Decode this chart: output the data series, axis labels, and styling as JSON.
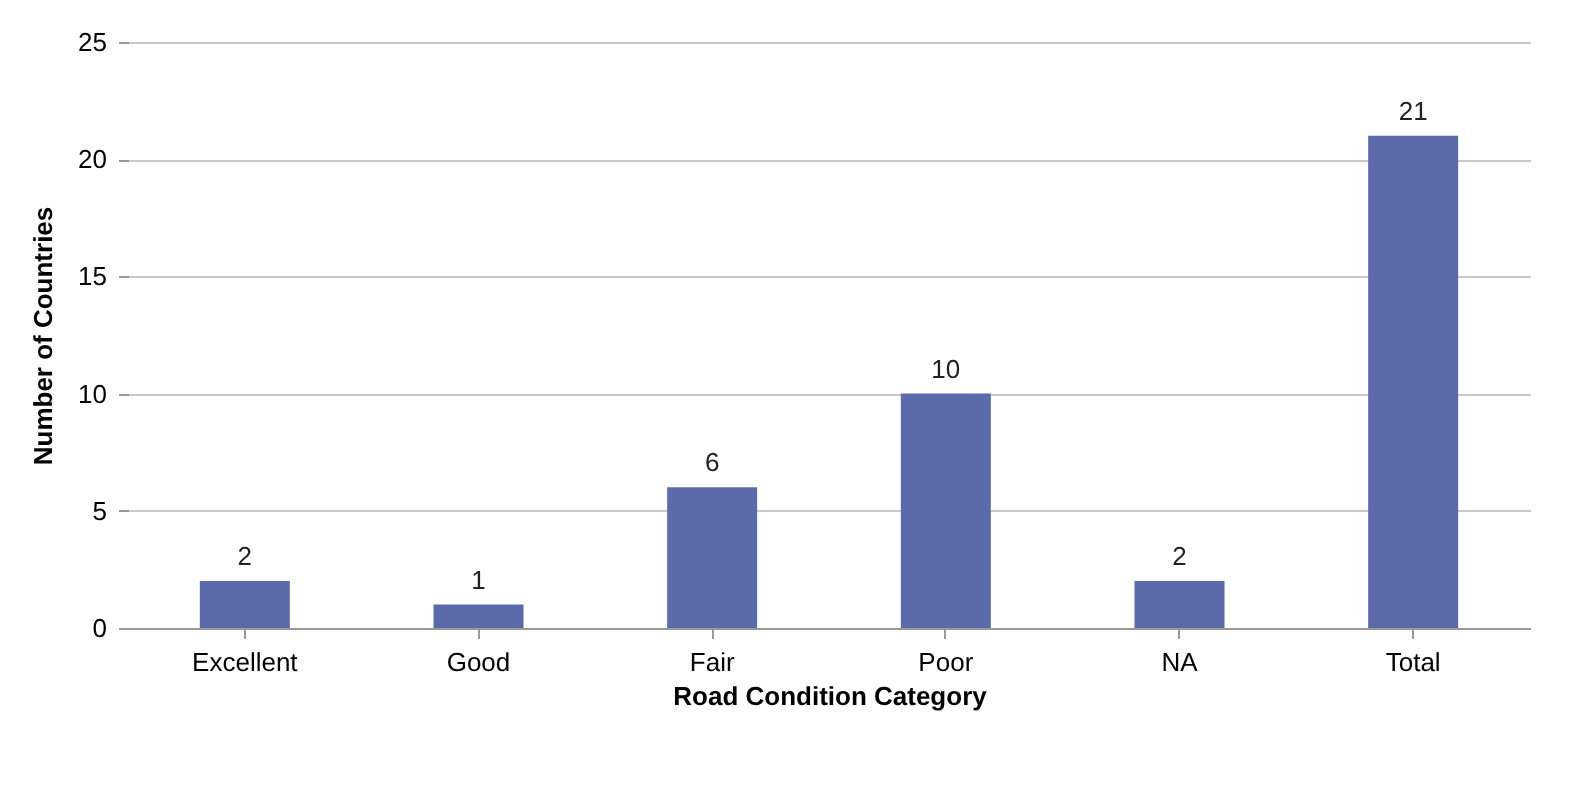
{
  "chart_data": {
    "type": "bar",
    "xlabel": "Road Condition Category",
    "ylabel": "Number of Countries",
    "categories": [
      "Excellent",
      "Good",
      "Fair",
      "Poor",
      "NA",
      "Total"
    ],
    "values": [
      2,
      1,
      6,
      10,
      2,
      21
    ],
    "color": "#5b6aab",
    "ylim": [
      0,
      25
    ],
    "yticks": [
      0,
      5,
      10,
      15,
      20,
      25
    ],
    "grid": "y",
    "data_labels": true
  }
}
